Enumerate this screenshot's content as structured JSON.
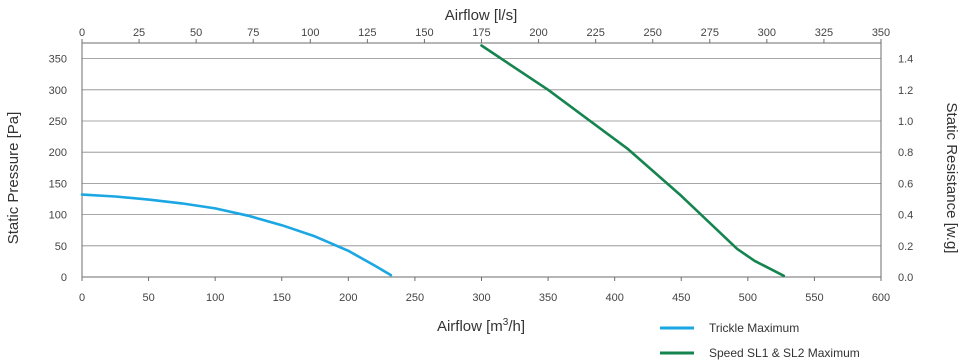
{
  "chart_data": {
    "type": "line",
    "title": "",
    "x_bottom": {
      "label": "Airflow [m",
      "label_sup": "3",
      "label_end": "/h]",
      "range": [
        0,
        600
      ],
      "ticks": [
        0,
        50,
        100,
        150,
        200,
        250,
        300,
        350,
        400,
        450,
        500,
        550,
        600
      ]
    },
    "x_top": {
      "label": "Airflow [l/s]",
      "range": [
        0,
        350
      ],
      "ticks": [
        0,
        25,
        50,
        75,
        100,
        125,
        150,
        175,
        200,
        225,
        250,
        275,
        300,
        325,
        350
      ]
    },
    "y_left": {
      "label": "Static Pressure [Pa]",
      "range": [
        0,
        375
      ],
      "ticks": [
        0,
        50,
        100,
        150,
        200,
        250,
        300,
        350
      ]
    },
    "y_right": {
      "label": "Static Resistance [w.g]",
      "ticks": [
        "0.0",
        "0.2",
        "0.4",
        "0.6",
        "0.8",
        "1.0",
        "1.2",
        "1.4"
      ]
    },
    "grid": "horizontal",
    "legend_position": "bottom-right",
    "series": [
      {
        "name": "Trickle Maximum",
        "color": "#1aa7e3",
        "points": [
          [
            0,
            132
          ],
          [
            25,
            129
          ],
          [
            50,
            124
          ],
          [
            75,
            118
          ],
          [
            100,
            110
          ],
          [
            125,
            98
          ],
          [
            150,
            83
          ],
          [
            175,
            65
          ],
          [
            200,
            42
          ],
          [
            220,
            18
          ],
          [
            232,
            3
          ]
        ]
      },
      {
        "name": "Speed SL1 & SL2 Maximum",
        "color": "#15844f",
        "points": [
          [
            300,
            371
          ],
          [
            350,
            300
          ],
          [
            410,
            205
          ],
          [
            450,
            130
          ],
          [
            492,
            45
          ],
          [
            505,
            26
          ],
          [
            527,
            2
          ]
        ]
      }
    ]
  }
}
